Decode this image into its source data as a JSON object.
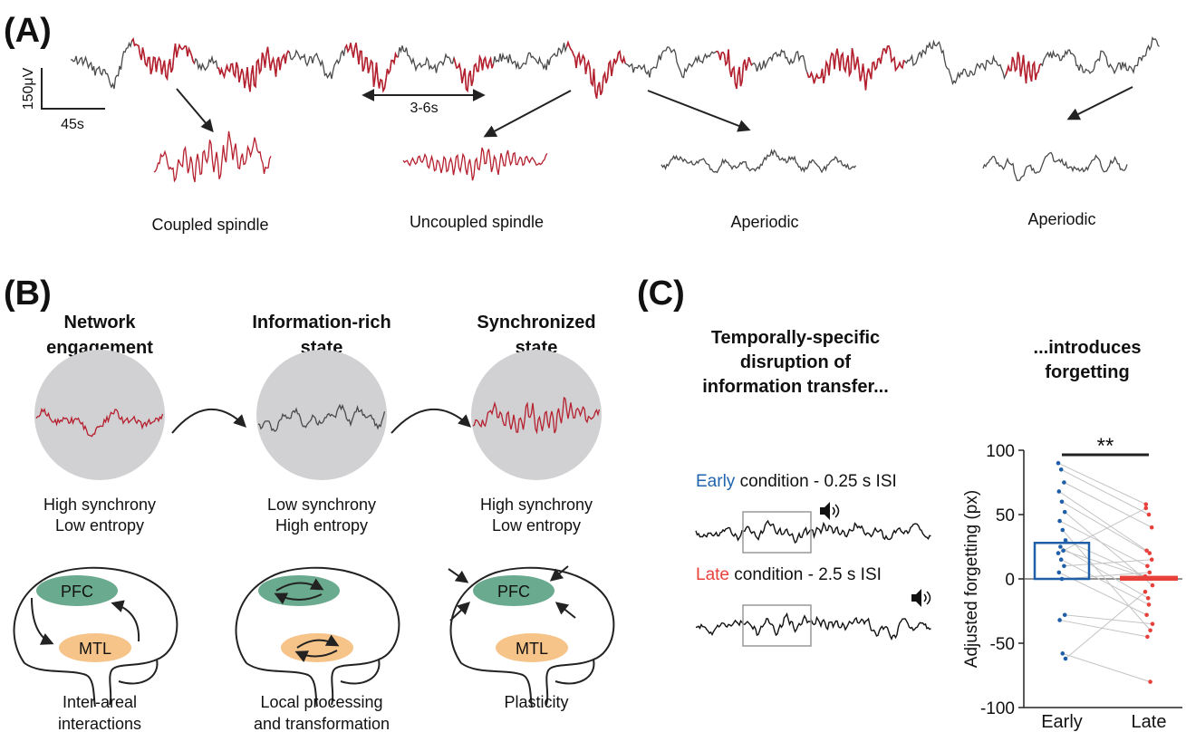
{
  "panel_a": {
    "label": "(A)",
    "scale_y": "150μV",
    "scale_x": "45s",
    "interval": "3-6s",
    "snippets": [
      "Coupled spindle",
      "Uncoupled spindle",
      "Aperiodic",
      "Aperiodic"
    ]
  },
  "panel_b": {
    "label": "(B)",
    "states": [
      {
        "title": [
          "Network",
          "engagement"
        ],
        "description": [
          "High synchrony",
          "Low entropy"
        ],
        "regions": [
          "PFC",
          "MTL"
        ],
        "caption": [
          "Inter-areal",
          "interactions"
        ]
      },
      {
        "title": [
          "Information-rich",
          "state"
        ],
        "description": [
          "Low synchrony",
          "High entropy"
        ],
        "caption": [
          "Local processing",
          "and transformation"
        ]
      },
      {
        "title": [
          "Synchronized",
          "state"
        ],
        "description": [
          "High synchrony",
          "Low entropy"
        ],
        "regions": [
          "PFC",
          "MTL"
        ],
        "caption": [
          "Plasticity"
        ]
      }
    ]
  },
  "panel_c": {
    "label": "(C)",
    "title": [
      "Temporally-specific",
      "disruption of",
      "information transfer..."
    ],
    "outcome": [
      "...introduces",
      "forgetting"
    ],
    "conditions": [
      {
        "name": "Early",
        "rest": " condition - 0.25 s ISI",
        "color": "#1f64ad"
      },
      {
        "name": "Late",
        "rest": " condition - 2.5 s ISI",
        "color": "#e8413c"
      }
    ]
  },
  "chart_data": {
    "type": "bar",
    "categories": [
      "Early",
      "Late"
    ],
    "values": [
      28,
      1
    ],
    "colors": [
      "#1f5fa8",
      "#e8413c"
    ],
    "ylabel": "Adjusted forgetting (px)",
    "ylim": [
      -100,
      100
    ],
    "yticks": [
      -100,
      -50,
      0,
      50,
      100
    ],
    "significance": "**",
    "points": [
      [
        90,
        85,
        75,
        68,
        60,
        52,
        45,
        38,
        30,
        25,
        22,
        20,
        15,
        10,
        5,
        0,
        -28,
        -32,
        -58,
        -62
      ],
      [
        58,
        50,
        40,
        22,
        20,
        -5,
        10,
        -40,
        2,
        -15,
        0,
        55,
        -20,
        15,
        -28,
        5,
        -35,
        -45,
        -80,
        -10
      ]
    ]
  }
}
